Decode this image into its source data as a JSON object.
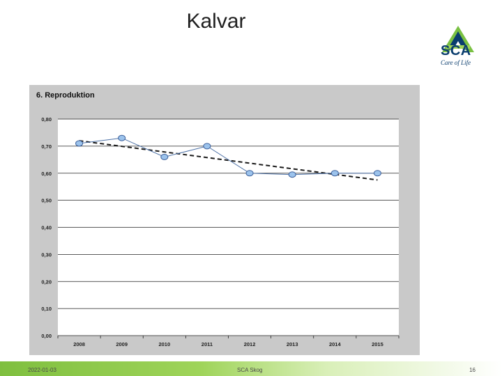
{
  "slide": {
    "title": "Kalvar",
    "logo_text": "SCA",
    "logo_tagline": "Care of Life"
  },
  "footer": {
    "date": "2022-01-03",
    "center": "SCA Skog",
    "page": "16"
  },
  "colors": {
    "panel_bg": "#c9c9c9",
    "plot_bg": "#ffffff",
    "series_line": "#4a6fa5",
    "marker_fill": "#9cc3ec",
    "marker_stroke": "#3b5f9a",
    "trend_line": "#1a1a1a",
    "logo_green": "#7ac143",
    "logo_blue": "#0a3d6e"
  },
  "chart_data": {
    "type": "line",
    "title": "6. Reproduktion",
    "xlabel": "",
    "ylabel": "",
    "categories": [
      "2008",
      "2009",
      "2010",
      "2011",
      "2012",
      "2013",
      "2014",
      "2015"
    ],
    "series": [
      {
        "values": [
          0.71,
          0.73,
          0.66,
          0.7,
          0.6,
          0.595,
          0.6,
          0.6
        ]
      }
    ],
    "trendline": {
      "style": "dashed",
      "start": 0.72,
      "end": 0.575
    },
    "ylim": [
      0,
      0.8
    ],
    "yticks": [
      "0,00",
      "0,10",
      "0,20",
      "0,30",
      "0,40",
      "0,50",
      "0,60",
      "0,70",
      "0,80"
    ],
    "grid": true,
    "legend": "none"
  }
}
